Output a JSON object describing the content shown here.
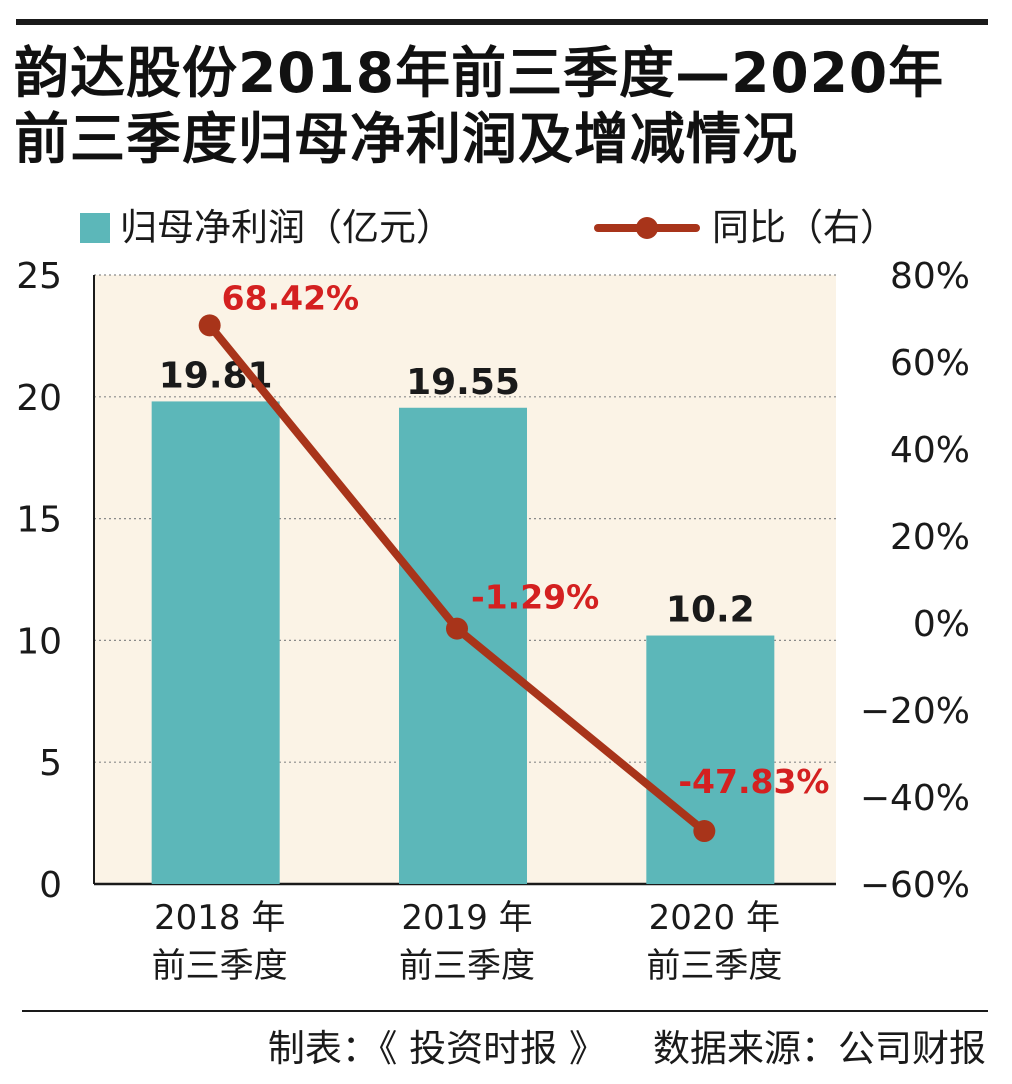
{
  "title": {
    "line1": "韵达股份2018年前三季度—2020年",
    "line2": "前三季度归母净利润及增减情况"
  },
  "legend": {
    "bar_label": "归母净利润（亿元）",
    "line_label": "同比（右）"
  },
  "colors": {
    "bar": "#5cb7b9",
    "line": "#a8341a",
    "plot_bg": "#fbf3e6",
    "line_label": "#d42020"
  },
  "chart_data": {
    "type": "bar",
    "categories": [
      [
        "2018 年",
        "前三季度"
      ],
      [
        "2019 年",
        "前三季度"
      ],
      [
        "2020 年",
        "前三季度"
      ]
    ],
    "series": [
      {
        "name": "归母净利润（亿元）",
        "type": "bar",
        "axis": "left",
        "values": [
          19.81,
          19.55,
          10.2
        ],
        "labels": [
          "19.81",
          "19.55",
          "10.2"
        ]
      },
      {
        "name": "同比（右）",
        "type": "line",
        "axis": "right",
        "values": [
          68.42,
          -1.29,
          -47.83
        ],
        "labels": [
          "68.42%",
          "-1.29%",
          "-47.83%"
        ]
      }
    ],
    "y_left": {
      "range": [
        0,
        25
      ],
      "ticks": [
        0,
        5,
        10,
        15,
        20,
        25
      ],
      "tick_labels": [
        "0",
        "5",
        "10",
        "15",
        "20",
        "25"
      ]
    },
    "y_right": {
      "range": [
        -60,
        80
      ],
      "ticks": [
        80,
        60,
        40,
        20,
        0,
        -20,
        -40,
        -60
      ],
      "tick_labels": [
        "80%",
        "60%",
        "40%",
        "20%",
        "0%",
        "−20%",
        "−40%",
        "−60%"
      ]
    },
    "grid": "dotted horizontal",
    "legend_position": "top-left"
  },
  "footer": {
    "maker": "制表：《 投资时报 》",
    "source": "数据来源：公司财报"
  }
}
